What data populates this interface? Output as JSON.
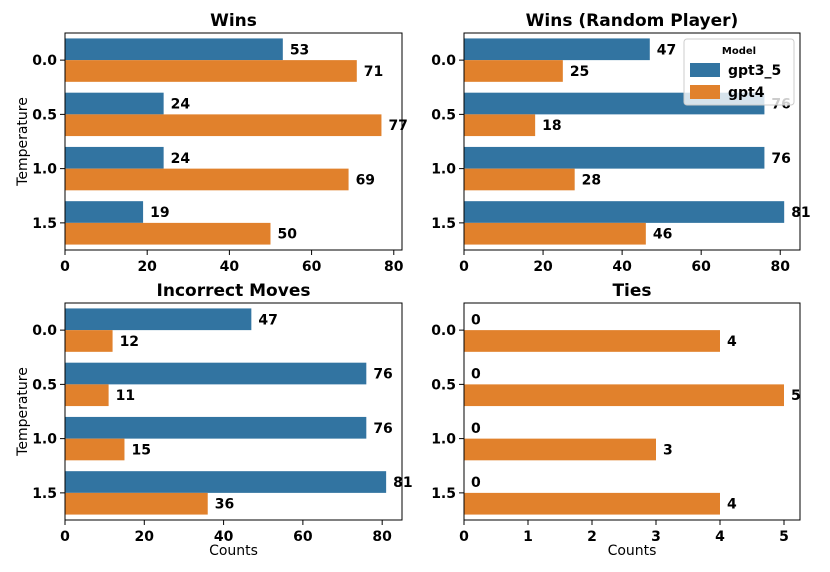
{
  "colors": {
    "gpt3_5": "#3274a1",
    "gpt4": "#e1812c"
  },
  "chart_data": [
    {
      "type": "bar",
      "orientation": "horizontal",
      "title": "Wins",
      "xlabel": "",
      "ylabel": "Temperature",
      "categories": [
        "0.0",
        "0.5",
        "1.0",
        "1.5"
      ],
      "xlim": [
        0,
        82
      ],
      "xticks": [
        0,
        20,
        40,
        60,
        80
      ],
      "series": [
        {
          "name": "gpt3_5",
          "values": [
            53,
            24,
            24,
            19
          ]
        },
        {
          "name": "gpt4",
          "values": [
            71,
            77,
            69,
            50
          ]
        }
      ]
    },
    {
      "type": "bar",
      "orientation": "horizontal",
      "title": "Wins (Random Player)",
      "xlabel": "",
      "ylabel": "",
      "categories": [
        "0.0",
        "0.5",
        "1.0",
        "1.5"
      ],
      "xlim": [
        0,
        85
      ],
      "xticks": [
        0,
        20,
        40,
        60,
        80
      ],
      "series": [
        {
          "name": "gpt3_5",
          "values": [
            47,
            76,
            76,
            81
          ]
        },
        {
          "name": "gpt4",
          "values": [
            25,
            18,
            28,
            46
          ]
        }
      ],
      "legend": {
        "title": "Model",
        "entries": [
          "gpt3_5",
          "gpt4"
        ],
        "placement": "upper-right"
      }
    },
    {
      "type": "bar",
      "orientation": "horizontal",
      "title": "Incorrect Moves",
      "xlabel": "Counts",
      "ylabel": "Temperature",
      "categories": [
        "0.0",
        "0.5",
        "1.0",
        "1.5"
      ],
      "xlim": [
        0,
        85
      ],
      "xticks": [
        0,
        20,
        40,
        60,
        80
      ],
      "series": [
        {
          "name": "gpt3_5",
          "values": [
            47,
            76,
            76,
            81
          ]
        },
        {
          "name": "gpt4",
          "values": [
            12,
            11,
            15,
            36
          ]
        }
      ]
    },
    {
      "type": "bar",
      "orientation": "horizontal",
      "title": "Ties",
      "xlabel": "Counts",
      "ylabel": "",
      "categories": [
        "0.0",
        "0.5",
        "1.0",
        "1.5"
      ],
      "xlim": [
        0,
        5.25
      ],
      "xticks": [
        0,
        1,
        2,
        3,
        4,
        5
      ],
      "series": [
        {
          "name": "gpt3_5",
          "values": [
            0,
            0,
            0,
            0
          ]
        },
        {
          "name": "gpt4",
          "values": [
            4,
            5,
            3,
            4
          ]
        }
      ]
    }
  ]
}
